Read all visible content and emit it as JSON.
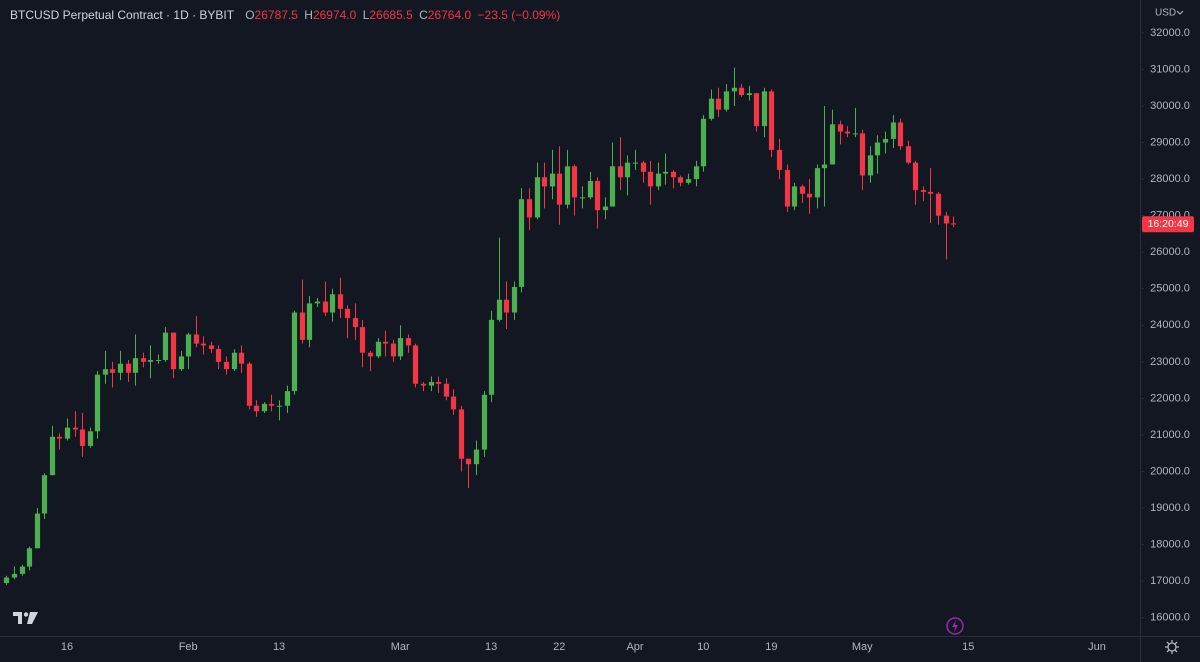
{
  "header": {
    "symbol": "BTCUSD Perpetual Contract · 1D · BYBIT",
    "ohlc": [
      {
        "label": "O",
        "value": "26787.5"
      },
      {
        "label": "H",
        "value": "26974.0"
      },
      {
        "label": "L",
        "value": "26685.5"
      },
      {
        "label": "C",
        "value": "26764.0"
      }
    ],
    "change": "−23.5 (−0.09%)"
  },
  "currency": "USD",
  "price_tag": "16:20:49",
  "chart_data": {
    "type": "candlestick",
    "up_color": "#4caf50",
    "down_color": "#f23645",
    "grid": false,
    "categories": [
      null,
      null,
      null,
      null,
      null,
      null,
      null,
      null,
      "16",
      null,
      null,
      null,
      null,
      null,
      null,
      null,
      null,
      null,
      null,
      null,
      null,
      null,
      null,
      null,
      "Feb",
      null,
      null,
      null,
      null,
      null,
      null,
      null,
      null,
      null,
      null,
      null,
      "13",
      null,
      null,
      null,
      null,
      null,
      null,
      null,
      null,
      null,
      null,
      null,
      null,
      null,
      null,
      null,
      "Mar",
      null,
      null,
      null,
      null,
      null,
      null,
      null,
      null,
      null,
      null,
      null,
      "13",
      null,
      null,
      null,
      null,
      null,
      null,
      null,
      null,
      "22",
      null,
      null,
      null,
      null,
      null,
      null,
      null,
      null,
      null,
      "Apr",
      null,
      null,
      null,
      null,
      null,
      null,
      null,
      null,
      "10",
      null,
      null,
      null,
      null,
      null,
      null,
      null,
      null,
      "19",
      null,
      null,
      null,
      null,
      null,
      null,
      null,
      null,
      null,
      null,
      null,
      "May",
      null,
      null,
      null,
      null,
      null,
      null,
      null,
      null,
      null,
      null,
      null,
      null,
      null,
      "15",
      null,
      null,
      null,
      null,
      null,
      null,
      null,
      null,
      null,
      null,
      null,
      null,
      null,
      null,
      null,
      null,
      "Jun"
    ],
    "open": [
      16950,
      17100,
      17200,
      17400,
      17900,
      18850,
      19900,
      20950,
      20900,
      21200,
      21150,
      20700,
      21100,
      22650,
      22800,
      22700,
      22950,
      22700,
      23100,
      23000,
      23050,
      23050,
      23800,
      22800,
      23150,
      23750,
      23500,
      23450,
      23350,
      23000,
      22800,
      23250,
      22950,
      21800,
      21650,
      21850,
      21800,
      21800,
      22200,
      24350,
      23600,
      24600,
      24650,
      24350,
      24850,
      24450,
      24200,
      23950,
      23250,
      23150,
      23550,
      23500,
      23150,
      23650,
      23450,
      22400,
      22350,
      22450,
      22400,
      22050,
      21700,
      20350,
      20200,
      20600,
      22100,
      24150,
      24700,
      24350,
      25050,
      27450,
      26950,
      28050,
      27800,
      28150,
      27300,
      28350,
      27500,
      27500,
      27950,
      27150,
      27250,
      28350,
      28050,
      28450,
      28450,
      28200,
      27800,
      28150,
      28200,
      28050,
      27900,
      28000,
      28350,
      29650,
      30200,
      29900,
      30400,
      30500,
      30300,
      30350,
      29450,
      30400,
      28800,
      28250,
      27250,
      27800,
      27600,
      27500,
      28300,
      28400,
      29500,
      29300,
      29250,
      29250,
      28100,
      28650,
      29000,
      29100,
      29550,
      28900,
      28450,
      27700,
      27650,
      27600,
      27000,
      26787.5,
      null,
      null,
      null,
      null,
      null,
      null,
      null,
      null,
      null,
      null,
      null,
      null,
      null,
      null,
      null,
      null,
      null,
      null,
      null
    ],
    "high": [
      17150,
      17400,
      17450,
      17950,
      19000,
      19950,
      21250,
      21050,
      21450,
      21650,
      21600,
      21200,
      22750,
      23300,
      23000,
      23300,
      23050,
      23750,
      23250,
      23450,
      23200,
      23950,
      23800,
      23300,
      23800,
      24250,
      23700,
      23550,
      23450,
      23150,
      23350,
      23450,
      23000,
      21950,
      21900,
      22100,
      21950,
      22350,
      24400,
      25250,
      24800,
      24750,
      25200,
      25000,
      25300,
      24550,
      24600,
      24150,
      23300,
      23650,
      23850,
      23600,
      24000,
      23750,
      23500,
      22450,
      22600,
      22600,
      22550,
      22250,
      21800,
      20350,
      20850,
      22200,
      24400,
      26400,
      25200,
      25200,
      27750,
      27750,
      28450,
      28450,
      28800,
      28900,
      28800,
      28400,
      27800,
      28200,
      28050,
      27500,
      29000,
      29150,
      28650,
      28800,
      28500,
      28500,
      28450,
      28700,
      28250,
      28100,
      28150,
      28500,
      29750,
      30450,
      30500,
      30600,
      31050,
      30600,
      30550,
      30350,
      30500,
      30450,
      29100,
      28400,
      27900,
      27850,
      28000,
      28400,
      30000,
      29900,
      29600,
      29450,
      29950,
      29350,
      28900,
      29200,
      29300,
      29750,
      29650,
      29050,
      28500,
      27800,
      28300,
      27650,
      27100,
      26974,
      null,
      null,
      null,
      null,
      null,
      null,
      null,
      null,
      null,
      null,
      null,
      null,
      null,
      null,
      null,
      null,
      null,
      null,
      null
    ],
    "low": [
      16900,
      17050,
      17150,
      17300,
      17900,
      18700,
      19900,
      20600,
      20850,
      20950,
      20400,
      20650,
      20900,
      22400,
      22300,
      22500,
      22450,
      22350,
      22850,
      22550,
      22950,
      23000,
      22550,
      22750,
      22800,
      23400,
      23200,
      23250,
      22800,
      22650,
      22750,
      22700,
      21700,
      21500,
      21600,
      21650,
      21400,
      21600,
      22100,
      23500,
      23400,
      24500,
      24250,
      24100,
      24200,
      23650,
      23600,
      22850,
      22750,
      23100,
      23150,
      23000,
      23050,
      23250,
      22300,
      22200,
      22200,
      22150,
      21950,
      21550,
      20000,
      19550,
      19900,
      20400,
      21900,
      24100,
      23900,
      24150,
      24900,
      26600,
      26900,
      27200,
      27450,
      26750,
      27200,
      27000,
      27200,
      27450,
      26650,
      26900,
      27250,
      27700,
      27550,
      28250,
      27900,
      27300,
      27700,
      27850,
      27750,
      27800,
      27850,
      27800,
      28200,
      29600,
      29700,
      29850,
      30000,
      30250,
      30150,
      29300,
      29150,
      28600,
      28000,
      27100,
      27150,
      27350,
      27050,
      27200,
      27250,
      28400,
      28950,
      29150,
      29150,
      27700,
      27900,
      28150,
      28700,
      28850,
      28800,
      28400,
      27300,
      27400,
      26800,
      26750,
      25800,
      26685.5,
      null,
      null,
      null,
      null,
      null,
      null,
      null,
      null,
      null,
      null,
      null,
      null,
      null,
      null,
      null,
      null,
      null,
      null,
      null
    ],
    "close": [
      17100,
      17200,
      17400,
      17900,
      18850,
      19900,
      20950,
      20900,
      21200,
      21150,
      20700,
      21100,
      22650,
      22800,
      22700,
      22950,
      22700,
      23100,
      23000,
      23050,
      23050,
      23800,
      22800,
      23150,
      23750,
      23500,
      23450,
      23350,
      23000,
      22800,
      23250,
      22950,
      21800,
      21650,
      21850,
      21800,
      21800,
      22200,
      24350,
      23600,
      24600,
      24650,
      24350,
      24850,
      24450,
      24200,
      23950,
      23250,
      23150,
      23550,
      23500,
      23150,
      23650,
      23450,
      22400,
      22350,
      22450,
      22400,
      22050,
      21700,
      20350,
      20200,
      20600,
      22100,
      24150,
      24700,
      24350,
      25050,
      27450,
      26950,
      28050,
      27800,
      28150,
      27300,
      28350,
      27500,
      27500,
      27950,
      27150,
      27250,
      28350,
      28050,
      28450,
      28450,
      28200,
      27800,
      28150,
      28200,
      28050,
      27900,
      28000,
      28350,
      29650,
      30200,
      29900,
      30400,
      30500,
      30300,
      30350,
      29450,
      30400,
      28800,
      28250,
      27250,
      27800,
      27600,
      27500,
      28300,
      28400,
      29500,
      29300,
      29250,
      29250,
      28100,
      28650,
      29000,
      29100,
      29550,
      28900,
      28450,
      27700,
      27650,
      27600,
      27000,
      26787.5,
      26764,
      null,
      null,
      null,
      null,
      null,
      null,
      null,
      null,
      null,
      null,
      null,
      null,
      null,
      null,
      null,
      null,
      null,
      null,
      null
    ],
    "ylim": [
      15500,
      32900
    ],
    "yticks": [
      {
        "value": 16000,
        "label": "16000.0"
      },
      {
        "value": 17000,
        "label": "17000.0"
      },
      {
        "value": 18000,
        "label": "18000.0"
      },
      {
        "value": 19000,
        "label": "19000.0"
      },
      {
        "value": 20000,
        "label": "20000.0"
      },
      {
        "value": 21000,
        "label": "21000.0"
      },
      {
        "value": 22000,
        "label": "22000.0"
      },
      {
        "value": 23000,
        "label": "23000.0"
      },
      {
        "value": 24000,
        "label": "24000.0"
      },
      {
        "value": 25000,
        "label": "25000.0"
      },
      {
        "value": 26000,
        "label": "26000.0"
      },
      {
        "value": 27000,
        "label": "27000.0"
      },
      {
        "value": 28000,
        "label": "28000.0"
      },
      {
        "value": 29000,
        "label": "29000.0"
      },
      {
        "value": 30000,
        "label": "30000.0"
      },
      {
        "value": 31000,
        "label": "31000.0"
      },
      {
        "value": 32000,
        "label": "32000.0"
      }
    ]
  }
}
